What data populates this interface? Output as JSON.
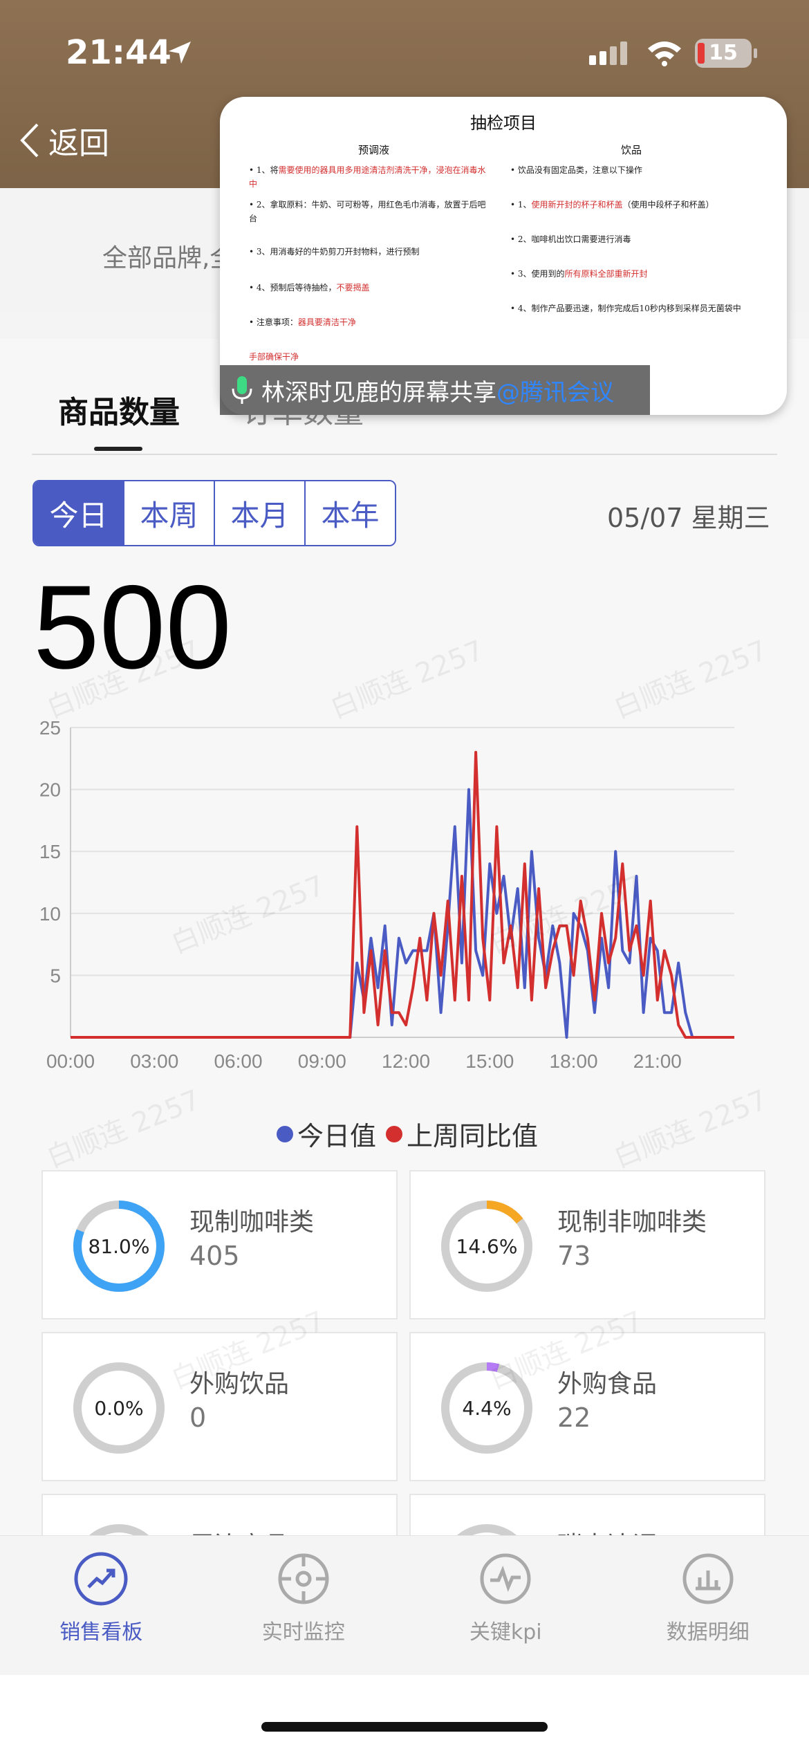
{
  "status": {
    "time": "21:44",
    "battery": "15"
  },
  "header": {
    "back_label": "返回"
  },
  "filter": {
    "text": "全部品牌,全"
  },
  "tabs": {
    "main": "商品数量",
    "sub": "订单数量"
  },
  "period": {
    "options": [
      "今日",
      "本周",
      "本月",
      "本年"
    ],
    "active": 0,
    "date": "05/07 星期三"
  },
  "total": "500",
  "share": {
    "title": "抽检项目",
    "col1_title": "预调液",
    "col2_title": "饮品",
    "col1_lines": [
      {
        "pre": "• 1、将",
        "red": "需要使用的器具用多用途清洁剂清洗干净，浸泡在消毒水中",
        "post": ""
      },
      {
        "pre": "• 2、拿取原料：牛奶、可可粉等，用红色毛巾消毒，放置于后吧台",
        "red": "",
        "post": ""
      },
      {
        "pre": "• 3、用消毒好的牛奶剪刀开封物料，进行预制",
        "red": "",
        "post": ""
      },
      {
        "pre": "• 4、预制后等待抽检，",
        "red": "不要揭盖",
        "post": ""
      },
      {
        "pre": "• 注意事项：",
        "red": "器具要清洁干净",
        "post": ""
      },
      {
        "pre": "",
        "red": "手部确保干净",
        "post": ""
      }
    ],
    "col2_lines": [
      {
        "pre": "• 饮品没有固定品类，注意以下操作",
        "red": "",
        "post": ""
      },
      {
        "pre": "• 1、",
        "red": "使用新开封的杯子和杯盖",
        "post": "（使用中段杯子和杯盖）"
      },
      {
        "pre": "• 2、咖啡机出饮口需要进行消毒",
        "red": "",
        "post": ""
      },
      {
        "pre": "• 3、使用到的",
        "red": "所有原料全部重新开封",
        "post": ""
      },
      {
        "pre": "• 4、制作产品要迅速，制作完成后10秒内移到采样员无菌袋中",
        "red": "",
        "post": ""
      }
    ],
    "bar_name": "林深时见鹿的屏幕共享",
    "bar_link": "@腾讯会议"
  },
  "watermark": "白顺连 2257",
  "chart_data": {
    "type": "line",
    "x": [
      "00:00",
      "00:15",
      "00:30",
      "00:45",
      "01:00",
      "01:15",
      "01:30",
      "01:45",
      "02:00",
      "02:15",
      "02:30",
      "02:45",
      "03:00",
      "03:15",
      "03:30",
      "03:45",
      "04:00",
      "04:15",
      "04:30",
      "04:45",
      "05:00",
      "05:15",
      "05:30",
      "05:45",
      "06:00",
      "06:15",
      "06:30",
      "06:45",
      "07:00",
      "07:15",
      "07:30",
      "07:45",
      "08:00",
      "08:15",
      "08:30",
      "08:45",
      "09:00",
      "09:15",
      "09:30",
      "09:45",
      "10:00",
      "10:15",
      "10:30",
      "10:45",
      "11:00",
      "11:15",
      "11:30",
      "11:45",
      "12:00",
      "12:15",
      "12:30",
      "12:45",
      "13:00",
      "13:15",
      "13:30",
      "13:45",
      "14:00",
      "14:15",
      "14:30",
      "14:45",
      "15:00",
      "15:15",
      "15:30",
      "15:45",
      "16:00",
      "16:15",
      "16:30",
      "16:45",
      "17:00",
      "17:15",
      "17:30",
      "17:45",
      "18:00",
      "18:15",
      "18:30",
      "18:45",
      "19:00",
      "19:15",
      "19:30",
      "19:45",
      "20:00",
      "20:15",
      "20:30",
      "20:45",
      "21:00",
      "21:15",
      "21:30",
      "21:45",
      "22:00",
      "22:15",
      "22:30",
      "22:45",
      "23:00",
      "23:15",
      "23:30",
      "23:45"
    ],
    "xticks": [
      "00:00",
      "03:00",
      "06:00",
      "09:00",
      "12:00",
      "15:00",
      "18:00",
      "21:00"
    ],
    "series": [
      {
        "name": "今日值",
        "color": "#4a5bc4",
        "values": [
          0,
          0,
          0,
          0,
          0,
          0,
          0,
          0,
          0,
          0,
          0,
          0,
          0,
          0,
          0,
          0,
          0,
          0,
          0,
          0,
          0,
          0,
          0,
          0,
          0,
          0,
          0,
          0,
          0,
          0,
          0,
          0,
          0,
          0,
          0,
          0,
          0,
          0,
          0,
          0,
          0,
          6,
          3,
          8,
          4,
          9,
          1,
          8,
          6,
          7,
          7,
          7,
          10,
          2,
          9,
          17,
          6,
          20,
          7,
          5,
          14,
          10,
          13,
          8,
          12,
          4,
          15,
          8,
          5,
          9,
          6,
          0,
          10,
          9,
          7,
          2,
          8,
          4,
          15,
          7,
          6,
          13,
          2,
          8,
          7,
          2,
          2,
          6,
          2,
          0,
          0,
          0,
          0,
          0,
          0,
          0
        ]
      },
      {
        "name": "上周同比值",
        "color": "#d32f2f",
        "values": [
          0,
          0,
          0,
          0,
          0,
          0,
          0,
          0,
          0,
          0,
          0,
          0,
          0,
          0,
          0,
          0,
          0,
          0,
          0,
          0,
          0,
          0,
          0,
          0,
          0,
          0,
          0,
          0,
          0,
          0,
          0,
          0,
          0,
          0,
          0,
          0,
          0,
          0,
          0,
          0,
          0,
          17,
          2,
          7,
          1,
          7,
          2,
          2,
          1,
          4,
          8,
          3,
          10,
          5,
          11,
          3,
          13,
          3,
          23,
          8,
          3,
          17,
          6,
          9,
          4,
          14,
          3,
          12,
          4,
          7,
          9,
          9,
          5,
          11,
          8,
          3,
          10,
          6,
          8,
          14,
          7,
          9,
          5,
          11,
          3,
          7,
          5,
          1,
          0,
          0,
          0,
          0,
          0,
          0,
          0,
          0
        ]
      }
    ],
    "ylim": [
      0,
      25
    ],
    "yticks": [
      5,
      10,
      15,
      20,
      25
    ]
  },
  "stats": [
    {
      "name": "现制咖啡类",
      "value": "405",
      "percent": "81.0%",
      "fraction": 0.81,
      "color": "#3ea3f5"
    },
    {
      "name": "现制非咖啡类",
      "value": "73",
      "percent": "14.6%",
      "fraction": 0.146,
      "color": "#f5a623"
    },
    {
      "name": "外购饮品",
      "value": "0",
      "percent": "0.0%",
      "fraction": 0.0,
      "color": "#cccccc"
    },
    {
      "name": "外购食品",
      "value": "22",
      "percent": "4.4%",
      "fraction": 0.044,
      "color": "#b57bf5"
    },
    {
      "name": "周边商品",
      "value": "",
      "percent": "",
      "fraction": 0.0,
      "color": "#cccccc"
    },
    {
      "name": "瑞幸达调",
      "value": "",
      "percent": "",
      "fraction": 0.0,
      "color": "#cccccc"
    }
  ],
  "nav": [
    {
      "label": "销售看板",
      "icon": "trend-icon",
      "active": true
    },
    {
      "label": "实时监控",
      "icon": "target-icon",
      "active": false
    },
    {
      "label": "关键kpi",
      "icon": "pulse-icon",
      "active": false
    },
    {
      "label": "数据明细",
      "icon": "bar-chart-icon",
      "active": false
    }
  ]
}
